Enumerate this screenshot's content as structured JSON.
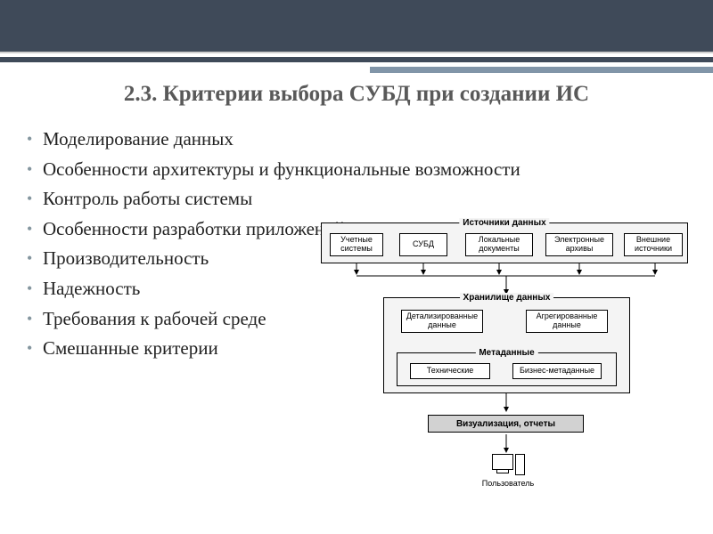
{
  "colors": {
    "top_band": "#3f4a59",
    "accent_bar": "#8195a8",
    "title_color": "#595959",
    "bullet_marker": "#84969f",
    "group_bg": "#f4f4f4",
    "node_dark_bg": "#d2d2d2"
  },
  "title": "2.3. Критерии выбора СУБД при создании ИС",
  "bullets": [
    "Моделирование данных",
    "Особенности архитектуры и функциональные возможности",
    "Контроль работы системы",
    "Особенности разработки приложений",
    "Производительность",
    "Надежность",
    "Требования к рабочей среде",
    "Смешанные критерии"
  ],
  "diagram": {
    "group_sources": {
      "label": "Источники данных",
      "nodes": [
        {
          "id": "src1",
          "text": "Учетные\nсистемы"
        },
        {
          "id": "src2",
          "text": "СУБД"
        },
        {
          "id": "src3",
          "text": "Локальные\nдокументы"
        },
        {
          "id": "src4",
          "text": "Электронные\nархивы"
        },
        {
          "id": "src5",
          "text": "Внешние\nисточники"
        }
      ]
    },
    "group_warehouse": {
      "label": "Хранилище данных",
      "detail": "Детализированные\nданные",
      "aggr": "Агрегированные\nданные",
      "meta_label": "Метаданные",
      "meta_tech": "Технические",
      "meta_biz": "Бизнес-метаданные"
    },
    "viz": "Визуализация, отчеты",
    "user": "Пользователь"
  }
}
